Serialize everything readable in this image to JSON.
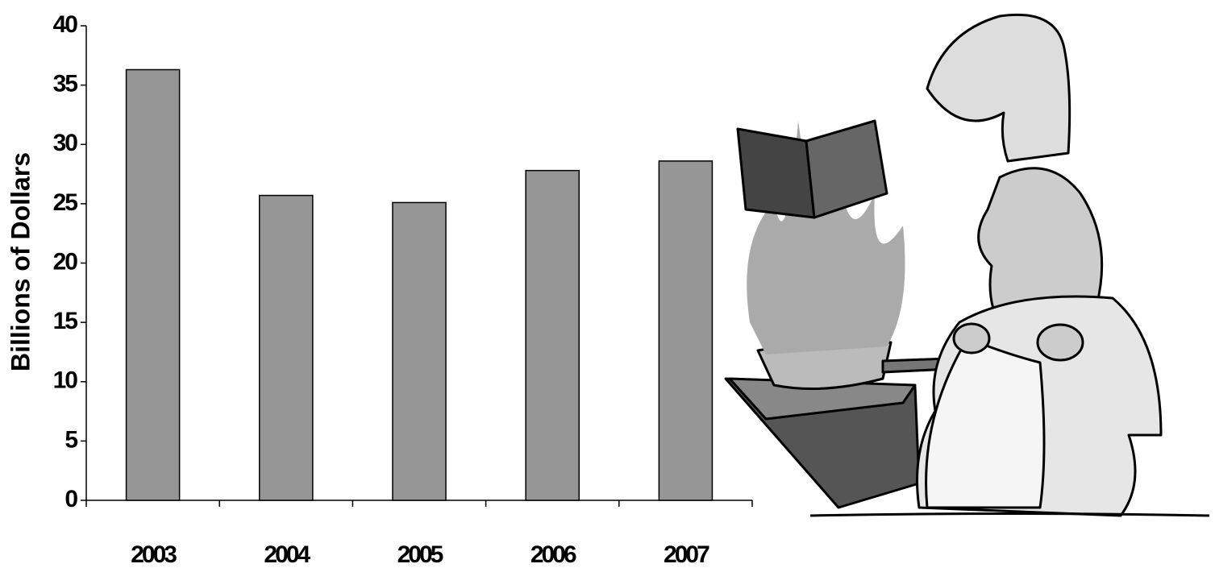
{
  "chart_data": {
    "type": "bar",
    "y_label": "Billions of Dollars",
    "categories": [
      "2003",
      "2004",
      "2005",
      "2006",
      "2007"
    ],
    "values": [
      36.3,
      25.7,
      25.1,
      27.8,
      28.6
    ],
    "color": "#969696",
    "ylim": [
      0,
      40
    ],
    "yticks": [
      0,
      5,
      10,
      15,
      20,
      25,
      30,
      35,
      40
    ],
    "grid": false
  }
}
